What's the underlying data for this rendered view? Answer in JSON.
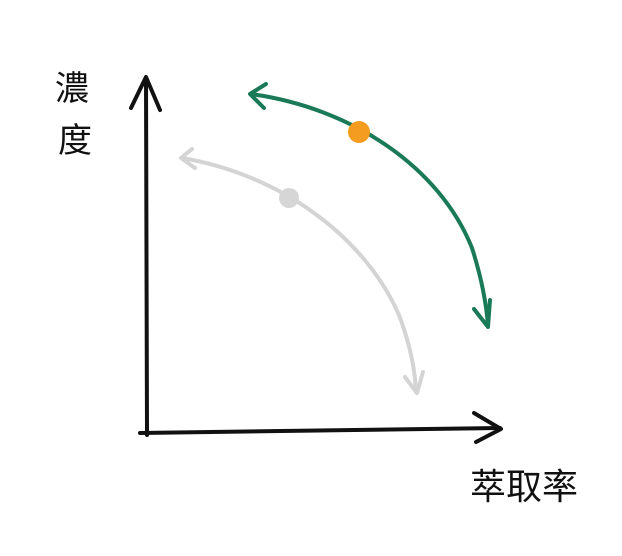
{
  "labels": {
    "y_axis": "濃度",
    "x_axis": "萃取率"
  },
  "colors": {
    "axis": "#111111",
    "current_curve": "#1a7a58",
    "previous_curve": "#d4d4d4",
    "current_point": "#f39c1f",
    "previous_point": "#d6d6d6"
  },
  "icons": {
    "curve_ends": "double-arrow-icon"
  }
}
